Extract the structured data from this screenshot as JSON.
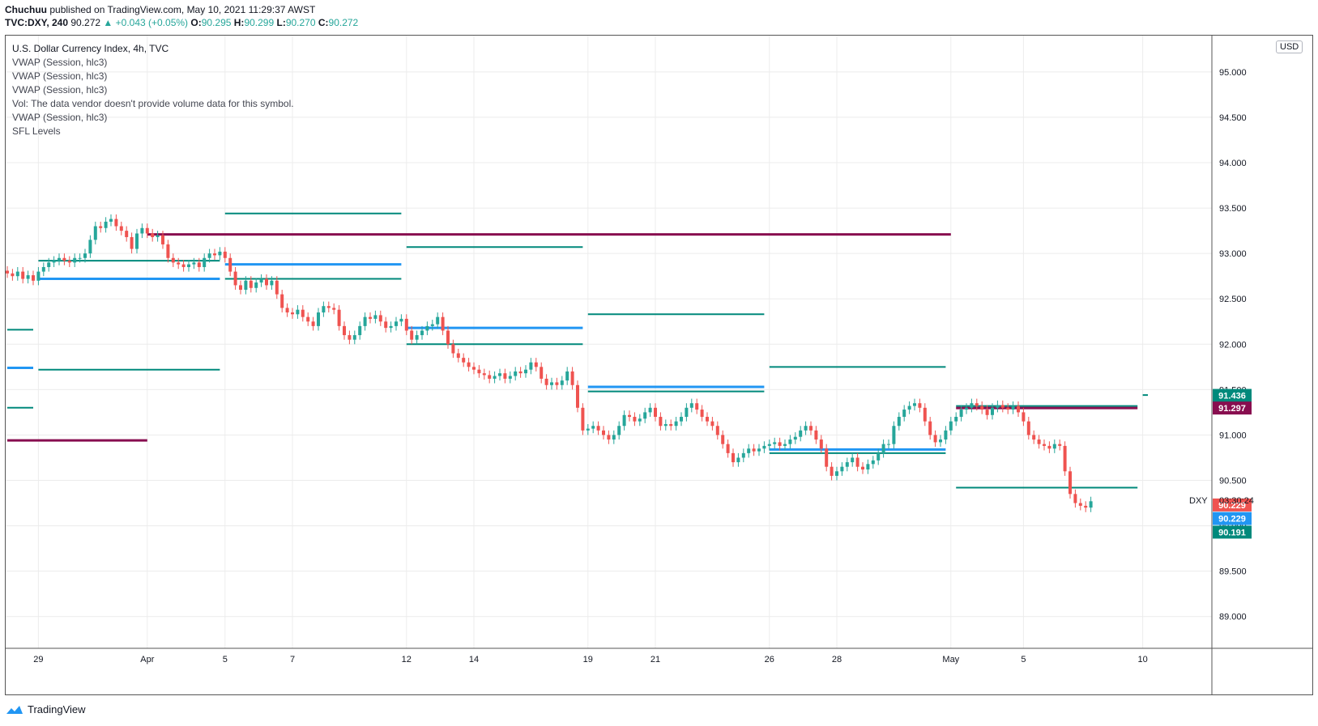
{
  "header": {
    "author": "Chuchuu",
    "published": "published on TradingView.com, May 10, 2021 11:29:37 AWST",
    "symbol": "TVC:DXY, 240",
    "last": "90.272",
    "change": "▲ +0.043 (+0.05%)",
    "o_label": "O:",
    "o_value": "90.295",
    "h_label": "H:",
    "h_value": "90.299",
    "l_label": "L:",
    "l_value": "90.270",
    "c_label": "C:",
    "c_value": "90.272"
  },
  "legend": {
    "title": "U.S. Dollar Currency Index, 4h, TVC",
    "lines": [
      "VWAP (Session, hlc3)",
      "VWAP (Session, hlc3)",
      "VWAP (Session, hlc3)",
      "Vol: The data vendor doesn't provide volume data for this symbol.",
      "VWAP (Session, hlc3)",
      "SFL Levels"
    ]
  },
  "currency_badge": "USD",
  "footer": {
    "brand": "TradingView"
  },
  "colors": {
    "up": "#26a69a",
    "down": "#ef5350",
    "teal_line": "#00897b",
    "blue_line": "#2196f3",
    "maroon_line": "#880e4f",
    "grid": "#ececec"
  },
  "chart_data": {
    "type": "candlestick",
    "ylim": [
      88.65,
      95.4
    ],
    "y_ticks": [
      89.0,
      89.5,
      90.0,
      90.5,
      91.0,
      91.5,
      92.0,
      92.5,
      93.0,
      93.5,
      94.0,
      94.5,
      95.0
    ],
    "x_ticks": [
      {
        "i": 6,
        "label": "29"
      },
      {
        "i": 27,
        "label": "Apr"
      },
      {
        "i": 42,
        "label": "5"
      },
      {
        "i": 55,
        "label": "7"
      },
      {
        "i": 77,
        "label": "12"
      },
      {
        "i": 90,
        "label": "14"
      },
      {
        "i": 112,
        "label": "19"
      },
      {
        "i": 125,
        "label": "21"
      },
      {
        "i": 147,
        "label": "26"
      },
      {
        "i": 160,
        "label": "28"
      },
      {
        "i": 182,
        "label": "May"
      },
      {
        "i": 196,
        "label": "5"
      },
      {
        "i": 219,
        "label": "10"
      }
    ],
    "closes": [
      92.78,
      92.75,
      92.8,
      92.72,
      92.76,
      92.7,
      92.8,
      92.85,
      92.9,
      92.92,
      92.95,
      92.92,
      92.9,
      92.95,
      92.95,
      93.0,
      93.15,
      93.3,
      93.28,
      93.35,
      93.38,
      93.3,
      93.25,
      93.18,
      93.05,
      93.22,
      93.28,
      93.22,
      93.18,
      93.2,
      93.1,
      92.95,
      92.9,
      92.88,
      92.85,
      92.88,
      92.9,
      92.85,
      92.95,
      93.0,
      92.98,
      93.02,
      92.95,
      92.8,
      92.65,
      92.6,
      92.7,
      92.62,
      92.68,
      92.72,
      92.65,
      92.7,
      92.55,
      92.4,
      92.35,
      92.33,
      92.38,
      92.3,
      92.25,
      92.2,
      92.35,
      92.42,
      92.4,
      92.38,
      92.2,
      92.1,
      92.05,
      92.1,
      92.2,
      92.3,
      92.28,
      92.32,
      92.25,
      92.18,
      92.2,
      92.25,
      92.28,
      92.15,
      92.05,
      92.1,
      92.15,
      92.2,
      92.22,
      92.3,
      92.15,
      92.0,
      91.9,
      91.85,
      91.8,
      91.75,
      91.72,
      91.68,
      91.66,
      91.62,
      91.65,
      91.68,
      91.62,
      91.65,
      91.7,
      91.68,
      91.72,
      91.8,
      91.75,
      91.62,
      91.55,
      91.58,
      91.55,
      91.6,
      91.7,
      91.55,
      91.3,
      91.05,
      91.07,
      91.1,
      91.05,
      91.0,
      90.95,
      91.0,
      91.1,
      91.22,
      91.2,
      91.15,
      91.18,
      91.25,
      91.3,
      91.2,
      91.1,
      91.12,
      91.1,
      91.15,
      91.2,
      91.3,
      91.35,
      91.28,
      91.2,
      91.15,
      91.1,
      91.0,
      90.9,
      90.8,
      90.7,
      90.75,
      90.8,
      90.85,
      90.82,
      90.85,
      90.88,
      90.9,
      90.92,
      90.88,
      90.9,
      90.95,
      90.98,
      91.05,
      91.1,
      91.05,
      90.95,
      90.85,
      90.65,
      90.55,
      90.6,
      90.65,
      90.7,
      90.75,
      90.65,
      90.62,
      90.68,
      90.72,
      90.8,
      90.9,
      90.9,
      91.1,
      91.2,
      91.28,
      91.32,
      91.35,
      91.3,
      91.15,
      91.0,
      90.92,
      90.95,
      91.05,
      91.15,
      91.2,
      91.28,
      91.3,
      91.35,
      91.32,
      91.28,
      91.22,
      91.3,
      91.33,
      91.3,
      91.28,
      91.32,
      91.25,
      91.15,
      91.0,
      90.95,
      90.9,
      90.88,
      90.85,
      90.9,
      90.88,
      90.6,
      90.35,
      90.25,
      90.22,
      90.2,
      90.27
    ],
    "segments": [
      {
        "color": "teal",
        "w": 2,
        "y": 92.92,
        "i0": 6,
        "i1": 41
      },
      {
        "color": "blue",
        "w": 3,
        "y": 92.72,
        "i0": 6,
        "i1": 41
      },
      {
        "color": "teal",
        "w": 2,
        "y": 91.72,
        "i0": 6,
        "i1": 41
      },
      {
        "color": "teal",
        "w": 2,
        "y": 92.16,
        "i0": 0,
        "i1": 5
      },
      {
        "color": "blue",
        "w": 3,
        "y": 91.74,
        "i0": 0,
        "i1": 5
      },
      {
        "color": "teal",
        "w": 2,
        "y": 91.3,
        "i0": 0,
        "i1": 5
      },
      {
        "color": "maroon",
        "w": 3,
        "y": 90.94,
        "i0": 0,
        "i1": 27
      },
      {
        "color": "maroon",
        "w": 3,
        "y": 93.21,
        "i0": 27,
        "i1": 182
      },
      {
        "color": "teal",
        "w": 2,
        "y": 93.44,
        "i0": 42,
        "i1": 76
      },
      {
        "color": "blue",
        "w": 3,
        "y": 92.88,
        "i0": 42,
        "i1": 76
      },
      {
        "color": "teal",
        "w": 2,
        "y": 92.72,
        "i0": 42,
        "i1": 76
      },
      {
        "color": "teal",
        "w": 2,
        "y": 93.07,
        "i0": 77,
        "i1": 111
      },
      {
        "color": "blue",
        "w": 3,
        "y": 92.18,
        "i0": 77,
        "i1": 111
      },
      {
        "color": "teal",
        "w": 2,
        "y": 92.0,
        "i0": 77,
        "i1": 111
      },
      {
        "color": "teal",
        "w": 2,
        "y": 92.33,
        "i0": 112,
        "i1": 146
      },
      {
        "color": "blue",
        "w": 3,
        "y": 91.53,
        "i0": 112,
        "i1": 146
      },
      {
        "color": "teal",
        "w": 2,
        "y": 91.48,
        "i0": 112,
        "i1": 146
      },
      {
        "color": "teal",
        "w": 2,
        "y": 91.75,
        "i0": 147,
        "i1": 181
      },
      {
        "color": "blue",
        "w": 3,
        "y": 90.84,
        "i0": 147,
        "i1": 181
      },
      {
        "color": "teal",
        "w": 2,
        "y": 90.8,
        "i0": 147,
        "i1": 181
      },
      {
        "color": "teal",
        "w": 2,
        "y": 91.32,
        "i0": 183,
        "i1": 218
      },
      {
        "color": "maroon",
        "w": 3,
        "y": 91.297,
        "i0": 183,
        "i1": 218
      },
      {
        "color": "teal",
        "w": 2,
        "y": 90.42,
        "i0": 183,
        "i1": 218
      },
      {
        "color": "teal",
        "w": 2,
        "y": 91.44,
        "i0": 219,
        "i1": 220
      }
    ],
    "price_labels": [
      {
        "value": "91.436",
        "y": 91.436,
        "color": "teal"
      },
      {
        "value": "91.297",
        "y": 91.297,
        "color": "maroon"
      },
      {
        "value": "90.229",
        "y": 90.229,
        "color": "down"
      },
      {
        "value": "90.229",
        "y": 90.08,
        "color": "blue"
      },
      {
        "value": "90.191",
        "y": 89.93,
        "color": "teal"
      }
    ],
    "countdown": {
      "symbol": "DXY",
      "time": "03:30:24",
      "y": 90.28
    }
  }
}
